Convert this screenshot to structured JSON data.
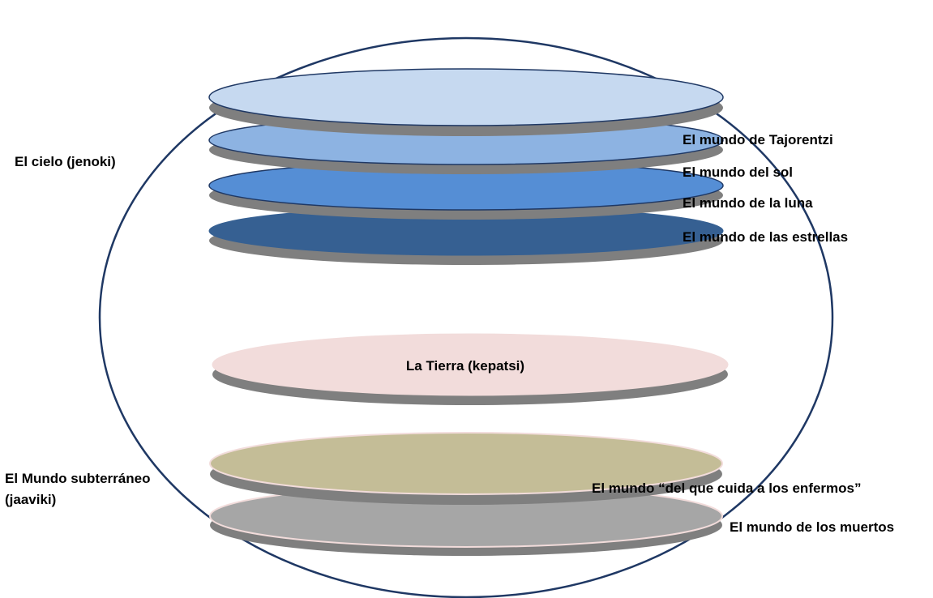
{
  "sky": {
    "label": "El cielo (jenoki)",
    "worlds": [
      {
        "label": "El mundo de Tajorentzi",
        "color": "#c6d9f0"
      },
      {
        "label": "El mundo del sol",
        "color": "#8db3e2"
      },
      {
        "label": "El mundo de la luna",
        "color": "#558ed5"
      },
      {
        "label": "El mundo de las estrellas",
        "color": "#366092"
      }
    ]
  },
  "earth": {
    "label": "La Tierra (kepatsi)",
    "color": "#f2dcdb"
  },
  "underworld": {
    "label_line1": "El Mundo subterráneo",
    "label_line2": "(jaaviki)",
    "worlds": [
      {
        "label": "El mundo “del que cuida a los enfermos”",
        "color": "#c4bd97"
      },
      {
        "label": "El mundo de los muertos",
        "color": "#a6a6a6"
      }
    ]
  },
  "colors": {
    "outline": "#1f3864",
    "shadow": "#7f7f7f",
    "disc_border_pink": "#f2dcdb"
  }
}
